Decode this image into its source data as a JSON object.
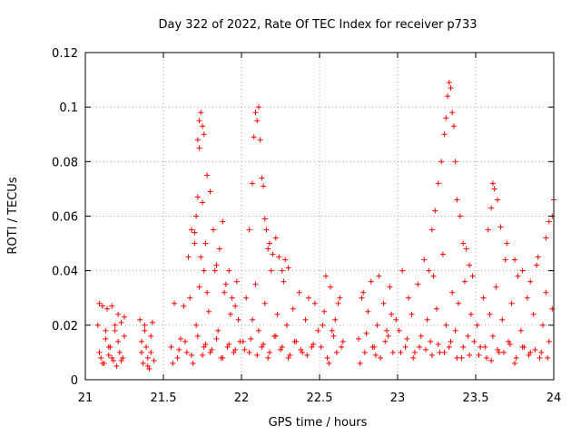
{
  "chart_data": {
    "type": "scatter",
    "title": "Day 322 of 2022, Rate Of TEC Index for receiver p733",
    "xlabel": "GPS time / hours",
    "ylabel": "ROTI / TECUs",
    "xlim": [
      21,
      24
    ],
    "ylim": [
      0,
      0.12
    ],
    "xticks": [
      21,
      21.5,
      22,
      22.5,
      23,
      23.5,
      24
    ],
    "xtick_labels": [
      "21",
      "21.5",
      "22",
      "22.5",
      "23",
      "23.5",
      "24"
    ],
    "yticks": [
      0,
      0.02,
      0.04,
      0.06,
      0.08,
      0.1,
      0.12
    ],
    "ytick_labels": [
      "0",
      "0.02",
      "0.04",
      "0.06",
      "0.08",
      "0.1",
      "0.12"
    ],
    "grid": true,
    "marker": "+",
    "color": "#ff0000",
    "series": [
      {
        "name": "ROTI",
        "x": [
          21.08,
          21.09,
          21.1,
          21.11,
          21.12,
          21.13,
          21.14,
          21.15,
          21.16,
          21.17,
          21.18,
          21.19,
          21.2,
          21.21,
          21.22,
          21.23,
          21.24,
          21.25,
          21.09,
          21.11,
          21.13,
          21.15,
          21.17,
          21.19,
          21.21,
          21.23,
          21.25,
          21.35,
          21.36,
          21.37,
          21.38,
          21.39,
          21.4,
          21.41,
          21.42,
          21.43,
          21.44,
          21.36,
          21.38,
          21.4,
          21.42,
          21.55,
          21.57,
          21.59,
          21.61,
          21.63,
          21.65,
          21.67,
          21.69,
          21.71,
          21.73,
          21.75,
          21.77,
          21.79,
          21.81,
          21.83,
          21.85,
          21.87,
          21.89,
          21.91,
          21.93,
          21.95,
          21.97,
          21.99,
          21.56,
          21.6,
          21.64,
          21.68,
          21.72,
          21.76,
          21.8,
          21.84,
          21.88,
          21.92,
          21.96,
          21.66,
          21.68,
          21.7,
          21.72,
          21.73,
          21.74,
          21.75,
          21.76,
          21.78,
          21.8,
          21.82,
          21.84,
          21.86,
          21.88,
          21.9,
          21.92,
          21.94,
          21.96,
          21.98,
          21.7,
          21.71,
          21.72,
          21.73,
          21.74,
          21.75,
          21.76,
          21.77,
          21.78,
          22.01,
          22.03,
          22.05,
          22.07,
          22.09,
          22.11,
          22.13,
          22.15,
          22.17,
          22.19,
          22.21,
          22.23,
          22.25,
          22.27,
          22.29,
          22.31,
          22.33,
          22.35,
          22.37,
          22.39,
          22.41,
          22.43,
          22.45,
          22.47,
          22.49,
          22.02,
          22.06,
          22.1,
          22.14,
          22.18,
          22.22,
          22.26,
          22.3,
          22.34,
          22.38,
          22.42,
          22.46,
          22.05,
          22.07,
          22.08,
          22.09,
          22.1,
          22.11,
          22.12,
          22.13,
          22.14,
          22.15,
          22.16,
          22.17,
          22.18,
          22.2,
          22.22,
          22.24,
          22.26,
          22.28,
          22.3,
          22.51,
          22.53,
          22.55,
          22.57,
          22.59,
          22.61,
          22.63,
          22.65,
          22.52,
          22.56,
          22.6,
          22.64,
          22.54,
          22.58,
          22.62,
          22.75,
          22.77,
          22.79,
          22.81,
          22.83,
          22.85,
          22.87,
          22.89,
          22.91,
          22.93,
          22.95,
          22.97,
          22.99,
          22.76,
          22.8,
          22.84,
          22.88,
          22.92,
          22.96,
          22.78,
          22.86,
          22.94,
          23.01,
          23.03,
          23.05,
          23.07,
          23.09,
          23.11,
          23.13,
          23.15,
          23.17,
          23.19,
          23.21,
          23.23,
          23.25,
          23.27,
          23.29,
          23.31,
          23.33,
          23.35,
          23.37,
          23.39,
          23.41,
          23.43,
          23.45,
          23.47,
          23.49,
          23.02,
          23.06,
          23.1,
          23.14,
          23.18,
          23.22,
          23.26,
          23.3,
          23.34,
          23.38,
          23.42,
          23.46,
          23.2,
          23.22,
          23.24,
          23.26,
          23.28,
          23.3,
          23.31,
          23.32,
          23.33,
          23.34,
          23.35,
          23.36,
          23.37,
          23.38,
          23.4,
          23.42,
          23.44,
          23.46,
          23.48,
          23.51,
          23.53,
          23.55,
          23.57,
          23.59,
          23.61,
          23.63,
          23.65,
          23.67,
          23.69,
          23.71,
          23.73,
          23.75,
          23.77,
          23.79,
          23.81,
          23.83,
          23.85,
          23.87,
          23.89,
          23.91,
          23.93,
          23.95,
          23.97,
          23.99,
          23.52,
          23.56,
          23.6,
          23.64,
          23.68,
          23.72,
          23.76,
          23.8,
          23.84,
          23.88,
          23.92,
          23.96,
          23.58,
          23.6,
          23.61,
          23.62,
          23.64,
          23.66,
          23.7,
          23.75,
          23.8,
          23.85,
          23.9,
          23.95,
          23.97,
          23.99,
          24.0
        ],
        "y": [
          0.02,
          0.028,
          0.008,
          0.027,
          0.006,
          0.015,
          0.026,
          0.009,
          0.012,
          0.027,
          0.007,
          0.018,
          0.005,
          0.024,
          0.01,
          0.021,
          0.008,
          0.023,
          0.01,
          0.006,
          0.018,
          0.012,
          0.008,
          0.02,
          0.014,
          0.007,
          0.016,
          0.022,
          0.01,
          0.006,
          0.02,
          0.012,
          0.008,
          0.004,
          0.016,
          0.021,
          0.007,
          0.014,
          0.018,
          0.005,
          0.01,
          0.012,
          0.028,
          0.008,
          0.015,
          0.027,
          0.01,
          0.03,
          0.006,
          0.02,
          0.034,
          0.009,
          0.013,
          0.025,
          0.011,
          0.04,
          0.018,
          0.008,
          0.032,
          0.012,
          0.024,
          0.01,
          0.036,
          0.014,
          0.006,
          0.011,
          0.014,
          0.009,
          0.016,
          0.012,
          0.01,
          0.015,
          0.008,
          0.013,
          0.011,
          0.045,
          0.055,
          0.05,
          0.067,
          0.085,
          0.098,
          0.093,
          0.09,
          0.075,
          0.069,
          0.055,
          0.042,
          0.048,
          0.058,
          0.035,
          0.04,
          0.03,
          0.027,
          0.022,
          0.054,
          0.06,
          0.088,
          0.095,
          0.045,
          0.065,
          0.04,
          0.05,
          0.032,
          0.014,
          0.03,
          0.01,
          0.022,
          0.035,
          0.018,
          0.012,
          0.028,
          0.008,
          0.04,
          0.016,
          0.024,
          0.011,
          0.036,
          0.02,
          0.009,
          0.026,
          0.014,
          0.032,
          0.01,
          0.022,
          0.03,
          0.012,
          0.028,
          0.018,
          0.011,
          0.015,
          0.009,
          0.013,
          0.01,
          0.016,
          0.012,
          0.008,
          0.014,
          0.011,
          0.009,
          0.013,
          0.055,
          0.072,
          0.089,
          0.098,
          0.095,
          0.1,
          0.088,
          0.074,
          0.071,
          0.059,
          0.055,
          0.048,
          0.05,
          0.046,
          0.052,
          0.045,
          0.04,
          0.044,
          0.041,
          0.012,
          0.025,
          0.008,
          0.034,
          0.016,
          0.01,
          0.03,
          0.014,
          0.02,
          0.006,
          0.022,
          0.012,
          0.038,
          0.018,
          0.028,
          0.015,
          0.03,
          0.01,
          0.025,
          0.036,
          0.012,
          0.02,
          0.008,
          0.028,
          0.018,
          0.034,
          0.01,
          0.022,
          0.006,
          0.017,
          0.012,
          0.038,
          0.014,
          0.024,
          0.032,
          0.009,
          0.016,
          0.018,
          0.04,
          0.012,
          0.03,
          0.024,
          0.01,
          0.035,
          0.016,
          0.044,
          0.022,
          0.014,
          0.038,
          0.026,
          0.01,
          0.046,
          0.02,
          0.012,
          0.032,
          0.018,
          0.028,
          0.008,
          0.036,
          0.016,
          0.024,
          0.014,
          0.01,
          0.015,
          0.008,
          0.012,
          0.011,
          0.009,
          0.013,
          0.01,
          0.014,
          0.008,
          0.012,
          0.009,
          0.04,
          0.055,
          0.062,
          0.072,
          0.08,
          0.09,
          0.096,
          0.104,
          0.109,
          0.107,
          0.098,
          0.093,
          0.08,
          0.066,
          0.06,
          0.05,
          0.048,
          0.042,
          0.038,
          0.02,
          0.012,
          0.03,
          0.008,
          0.024,
          0.016,
          0.034,
          0.01,
          0.022,
          0.044,
          0.014,
          0.028,
          0.006,
          0.038,
          0.018,
          0.012,
          0.03,
          0.01,
          0.024,
          0.042,
          0.008,
          0.02,
          0.032,
          0.014,
          0.026,
          0.009,
          0.012,
          0.007,
          0.011,
          0.01,
          0.013,
          0.008,
          0.012,
          0.009,
          0.011,
          0.01,
          0.008,
          0.055,
          0.063,
          0.072,
          0.07,
          0.066,
          0.056,
          0.05,
          0.044,
          0.04,
          0.036,
          0.045,
          0.052,
          0.058,
          0.06,
          0.066
        ]
      }
    ]
  }
}
